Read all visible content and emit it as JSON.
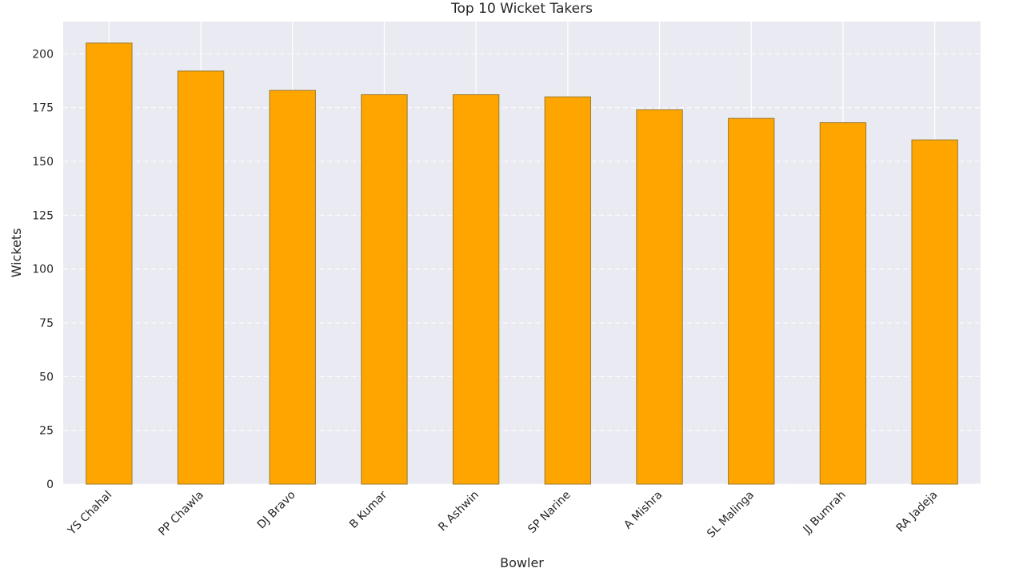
{
  "chart_data": {
    "type": "bar",
    "title": "Top 10 Wicket Takers",
    "xlabel": "Bowler",
    "ylabel": "Wickets",
    "categories": [
      "YS Chahal",
      "PP Chawla",
      "DJ Bravo",
      "B Kumar",
      "R Ashwin",
      "SP Narine",
      "A Mishra",
      "SL Malinga",
      "JJ Bumrah",
      "RA Jadeja"
    ],
    "values": [
      205,
      192,
      183,
      181,
      181,
      180,
      174,
      170,
      168,
      160
    ],
    "ylim": [
      0,
      215
    ],
    "yticks": [
      0,
      25,
      50,
      75,
      100,
      125,
      150,
      175,
      200
    ],
    "grid": true,
    "colors": {
      "bar": "#ffa500",
      "bar_edge": "#9c7a2a",
      "plot_bg": "#eaeaf2",
      "grid": "#ffffff"
    }
  }
}
